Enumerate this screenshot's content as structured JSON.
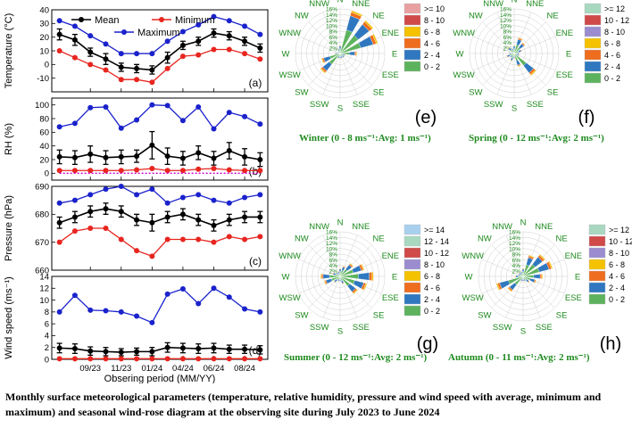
{
  "caption": "Monthly surface meteorological parameters (temperature, relative humidity, pressure and wind speed with average, minimum and maximum) and seasonal wind-rose diagram at the observing site during July 2023 to June 2024",
  "colors": {
    "mean": "#000000",
    "minimum": "#e8251f",
    "maximum": "#1a22cc",
    "rh_min2": "#cc00cc",
    "rose_green": "#1f8a1f"
  },
  "chart_data": [
    {
      "type": "line",
      "panel": "(a)",
      "ylabel": "Temperature (°C)",
      "ylim": [
        -20,
        40
      ],
      "yticks": [
        -10,
        0,
        10,
        20,
        30,
        40
      ],
      "xlabel": "Obsering period (MM/YY)",
      "x_ticklabels": [
        "09/23",
        "11/23",
        "01/24",
        "04/24",
        "06/24",
        "08/24"
      ],
      "x_tick_positions": [
        2,
        4,
        6,
        8,
        10,
        12
      ],
      "x": [
        0,
        1,
        2,
        3,
        4,
        5,
        6,
        7,
        8,
        9,
        10,
        11,
        12,
        13
      ],
      "legend": [
        "Mean",
        "Minimum",
        "Maximum"
      ],
      "series": [
        {
          "name": "Mean",
          "values": [
            22,
            18,
            9,
            4,
            -2,
            -3,
            -4,
            5,
            14,
            17,
            23,
            21,
            17,
            12
          ],
          "err": [
            4,
            4,
            3,
            4,
            3,
            3,
            3,
            4,
            3,
            3,
            3,
            3,
            3,
            3
          ]
        },
        {
          "name": "Minimum",
          "values": [
            10,
            5,
            0,
            -4,
            -11,
            -11,
            -13,
            -3,
            6,
            7,
            11,
            11,
            8,
            4
          ]
        },
        {
          "name": "Maximum",
          "values": [
            32,
            28,
            21,
            15,
            8,
            8,
            8,
            17,
            24,
            29,
            35,
            32,
            28,
            22
          ]
        }
      ]
    },
    {
      "type": "line",
      "panel": "(b)",
      "ylabel": "RH (%)",
      "ylim": [
        -10,
        110
      ],
      "yticks": [
        0,
        20,
        40,
        60,
        80,
        100
      ],
      "x": [
        0,
        1,
        2,
        3,
        4,
        5,
        6,
        7,
        8,
        9,
        10,
        11,
        12,
        13
      ],
      "series": [
        {
          "name": "Mean",
          "values": [
            24,
            23,
            28,
            23,
            24,
            25,
            41,
            25,
            22,
            30,
            22,
            33,
            24,
            20
          ],
          "err": [
            10,
            10,
            12,
            10,
            10,
            9,
            20,
            12,
            10,
            10,
            10,
            12,
            12,
            10
          ]
        },
        {
          "name": "Minimum",
          "values": [
            4,
            4,
            4,
            4,
            4,
            5,
            7,
            4,
            4,
            6,
            7,
            5,
            4,
            4
          ]
        },
        {
          "name": "Minimum (secondary)",
          "values": [
            0,
            0,
            0,
            0,
            0,
            0,
            0,
            0,
            0,
            0,
            0,
            0,
            0,
            0
          ]
        },
        {
          "name": "Maximum",
          "values": [
            68,
            73,
            96,
            97,
            66,
            78,
            100,
            99,
            77,
            97,
            65,
            89,
            83,
            72
          ]
        }
      ]
    },
    {
      "type": "line",
      "panel": "(c)",
      "ylabel": "Pressure (hPa)",
      "ylim": [
        660,
        690
      ],
      "yticks": [
        660,
        670,
        680,
        690
      ],
      "x": [
        0,
        1,
        2,
        3,
        4,
        5,
        6,
        7,
        8,
        9,
        10,
        11,
        12,
        13
      ],
      "series": [
        {
          "name": "Mean",
          "values": [
            677,
            679,
            681,
            682,
            681,
            678,
            677,
            679,
            680,
            678,
            676,
            678,
            679,
            679
          ],
          "err": [
            2,
            2,
            2,
            2,
            2,
            2,
            3,
            2,
            2,
            2,
            2,
            2,
            2,
            2
          ]
        },
        {
          "name": "Minimum",
          "values": [
            670,
            674,
            675,
            675,
            671,
            667,
            665,
            671,
            671,
            671,
            670,
            672,
            671,
            672
          ]
        },
        {
          "name": "Maximum",
          "values": [
            684,
            685,
            687,
            689,
            690,
            687,
            689,
            684,
            686,
            687,
            685,
            684,
            686,
            687
          ]
        }
      ]
    },
    {
      "type": "line",
      "panel": "(d)",
      "ylabel": "Wind speed (ms⁻¹)",
      "ylim": [
        0,
        14
      ],
      "yticks": [
        0,
        2,
        4,
        6,
        8,
        10,
        12,
        14
      ],
      "x": [
        0,
        1,
        2,
        3,
        4,
        5,
        6,
        7,
        8,
        9,
        10,
        11,
        12,
        13
      ],
      "series": [
        {
          "name": "Mean",
          "values": [
            1.9,
            1.8,
            1.4,
            1.3,
            1.2,
            1.3,
            1.3,
            2.0,
            1.9,
            1.8,
            1.9,
            1.7,
            1.7,
            1.6
          ],
          "err": [
            0.8,
            0.8,
            0.7,
            0.7,
            0.6,
            0.6,
            0.7,
            0.8,
            0.8,
            0.8,
            0.8,
            0.7,
            0.7,
            0.7
          ]
        },
        {
          "name": "Minimum",
          "values": [
            0.1,
            0.1,
            0.1,
            0.1,
            0.1,
            0.1,
            0.1,
            0.1,
            0.1,
            0.1,
            0.1,
            0.1,
            0.1,
            0.1
          ]
        },
        {
          "name": "Maximum",
          "values": [
            8,
            10.8,
            8.3,
            8.2,
            8,
            7.3,
            6.2,
            11,
            11.9,
            9.4,
            12,
            10.5,
            8.5,
            8
          ]
        }
      ]
    },
    {
      "type": "windrose",
      "panel": "(e)",
      "season": "Winter (0 - 8 ms⁻¹:Avg: 1 ms⁻¹)",
      "rings": [
        "2%",
        "4%",
        "6%",
        "8%",
        "10%",
        "12%",
        "14%",
        "16%"
      ],
      "directions": [
        "N",
        "NNE",
        "NE",
        "ENE",
        "E",
        "ESE",
        "SE",
        "SSE",
        "S",
        "SSW",
        "SW",
        "WSW",
        "W",
        "WNW",
        "NW",
        "NNW"
      ],
      "bins": [
        ">= 10",
        "8 - 10",
        "6 - 8",
        "4 - 6",
        "2 - 4",
        "0 - 2"
      ],
      "bin_colors": [
        "#e8a0a0",
        "#d04a4a",
        "#f5c200",
        "#ee6d1e",
        "#2f78c0",
        "#5db35d"
      ],
      "frequencies_pct": [
        3,
        16,
        15,
        14,
        6,
        2,
        2,
        2,
        2,
        2,
        9,
        7,
        2,
        1,
        1,
        2
      ]
    },
    {
      "type": "windrose",
      "panel": "(f)",
      "season": "Spring (0 - 12 ms⁻¹:Avg: 2 ms⁻¹)",
      "rings": [
        "2%",
        "4%",
        "6%",
        "8%",
        "10%",
        "12%",
        "14%",
        "16%"
      ],
      "directions": [
        "N",
        "NNE",
        "NE",
        "ENE",
        "E",
        "ESE",
        "SE",
        "SSE",
        "S",
        "SSW",
        "SW",
        "WSW",
        "W",
        "WNW",
        "NW",
        "NNW"
      ],
      "bins": [
        ">= 12",
        "10 - 12",
        "8 - 10",
        "6 - 8",
        "4 - 6",
        "2 - 4",
        "0 - 2"
      ],
      "bin_colors": [
        "#a8d8c0",
        "#d04a4a",
        "#9b8ccf",
        "#f5c200",
        "#ee6d1e",
        "#2f78c0",
        "#5db35d"
      ],
      "frequencies_pct": [
        3,
        6,
        5,
        3,
        2,
        2,
        10,
        5,
        2,
        3,
        2,
        3,
        2,
        1,
        3,
        2
      ]
    },
    {
      "type": "windrose",
      "panel": "(g)",
      "season": "Summer (0 - 12 ms⁻¹:Avg: 2 ms⁻¹)",
      "rings": [
        "2%",
        "4%",
        "6%",
        "8%",
        "10%",
        "12%",
        "14%",
        "16%"
      ],
      "directions": [
        "N",
        "NNE",
        "NE",
        "ENE",
        "E",
        "ESE",
        "SE",
        "SSE",
        "S",
        "SSW",
        "SW",
        "WSW",
        "W",
        "WNW",
        "NW",
        "NNW"
      ],
      "bins": [
        ">= 14",
        "12 - 14",
        "10 - 12",
        "8 - 10",
        "6 - 8",
        "4 - 6",
        "2 - 4",
        "0 - 2"
      ],
      "bin_colors": [
        "#a8d0ee",
        "#a8d8c0",
        "#d04a4a",
        "#9b8ccf",
        "#f5c200",
        "#ee6d1e",
        "#2f78c0",
        "#5db35d"
      ],
      "frequencies_pct": [
        3,
        4,
        6,
        9,
        12,
        10,
        8,
        3,
        2,
        2,
        3,
        6,
        7,
        3,
        2,
        2
      ]
    },
    {
      "type": "windrose",
      "panel": "(h)",
      "season": "Autumn (0 - 11 ms⁻¹:Avg: 2 ms⁻¹)",
      "rings": [
        "2%",
        "4%",
        "6%",
        "8%",
        "10%",
        "12%",
        "14%",
        "16%"
      ],
      "directions": [
        "N",
        "NNE",
        "NE",
        "ENE",
        "E",
        "ESE",
        "SE",
        "SSE",
        "S",
        "SSW",
        "SW",
        "WSW",
        "W",
        "WNW",
        "NW",
        "NNW"
      ],
      "bins": [
        ">= 12",
        "10 - 12",
        "8 - 10",
        "6 - 8",
        "4 - 6",
        "2 - 4",
        "0 - 2"
      ],
      "bin_colors": [
        "#a8d8c0",
        "#d04a4a",
        "#9b8ccf",
        "#f5c200",
        "#ee6d1e",
        "#2f78c0",
        "#5db35d"
      ],
      "frequencies_pct": [
        3,
        8,
        10,
        11,
        7,
        5,
        3,
        2,
        2,
        2,
        7,
        10,
        3,
        2,
        2,
        2
      ]
    }
  ]
}
